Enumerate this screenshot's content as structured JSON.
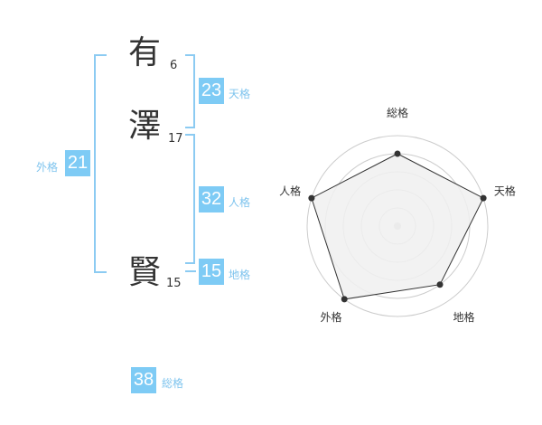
{
  "name": {
    "characters": [
      {
        "char": "有",
        "strokes": "6"
      },
      {
        "char": "澤",
        "strokes": "17"
      },
      {
        "char": "賢",
        "strokes": "15"
      }
    ]
  },
  "fortunes": {
    "tenkaku": {
      "label": "天格",
      "value": "23"
    },
    "jinkaku": {
      "label": "人格",
      "value": "32"
    },
    "chikaku": {
      "label": "地格",
      "value": "15"
    },
    "gaikaku": {
      "label": "外格",
      "value": "21"
    },
    "soukaku": {
      "label": "総格",
      "value": "38"
    }
  },
  "chart_data": {
    "type": "radar",
    "categories": [
      "総格",
      "天格",
      "地格",
      "外格",
      "人格"
    ],
    "values": [
      4,
      5,
      4,
      5,
      5
    ],
    "rlim": [
      0,
      5
    ],
    "grid": true,
    "colors": {
      "fill": "#f0f0f0",
      "line": "#333333",
      "grid": "#cccccc",
      "accent": "#7ecbf5"
    }
  }
}
